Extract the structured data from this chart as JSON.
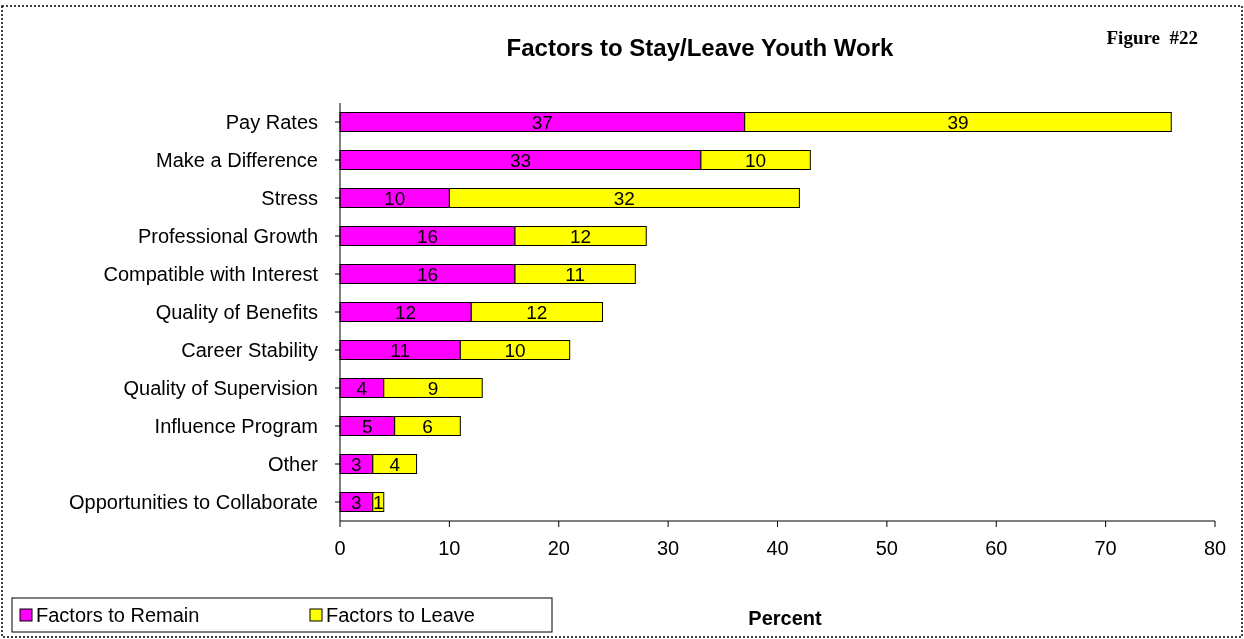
{
  "chart_data": {
    "type": "bar",
    "orientation": "horizontal",
    "stacked": true,
    "title": "Factors to Stay/Leave Youth Work",
    "xlabel": "Percent",
    "annotations": [
      "Figure  #22"
    ],
    "categories": [
      "Pay Rates",
      "Make a Difference",
      "Stress",
      "Professional Growth",
      "Compatible with Interest",
      "Quality of Benefits",
      "Career Stability",
      "Quality of Supervision",
      "Influence Program",
      "Other",
      "Opportunities to Collaborate"
    ],
    "series": [
      {
        "name": "Factors to Remain",
        "color": "#ff00ff",
        "values": [
          37,
          33,
          10,
          16,
          16,
          12,
          11,
          4,
          5,
          3,
          3
        ]
      },
      {
        "name": "Factors to Leave",
        "color": "#ffff00",
        "values": [
          39,
          10,
          32,
          12,
          11,
          12,
          10,
          9,
          6,
          4,
          1
        ]
      }
    ],
    "xlim": [
      0,
      80
    ],
    "xticks": [
      0,
      10,
      20,
      30,
      40,
      50,
      60,
      70,
      80
    ],
    "grid": false,
    "legend": "bottom left",
    "data_labels": true
  }
}
